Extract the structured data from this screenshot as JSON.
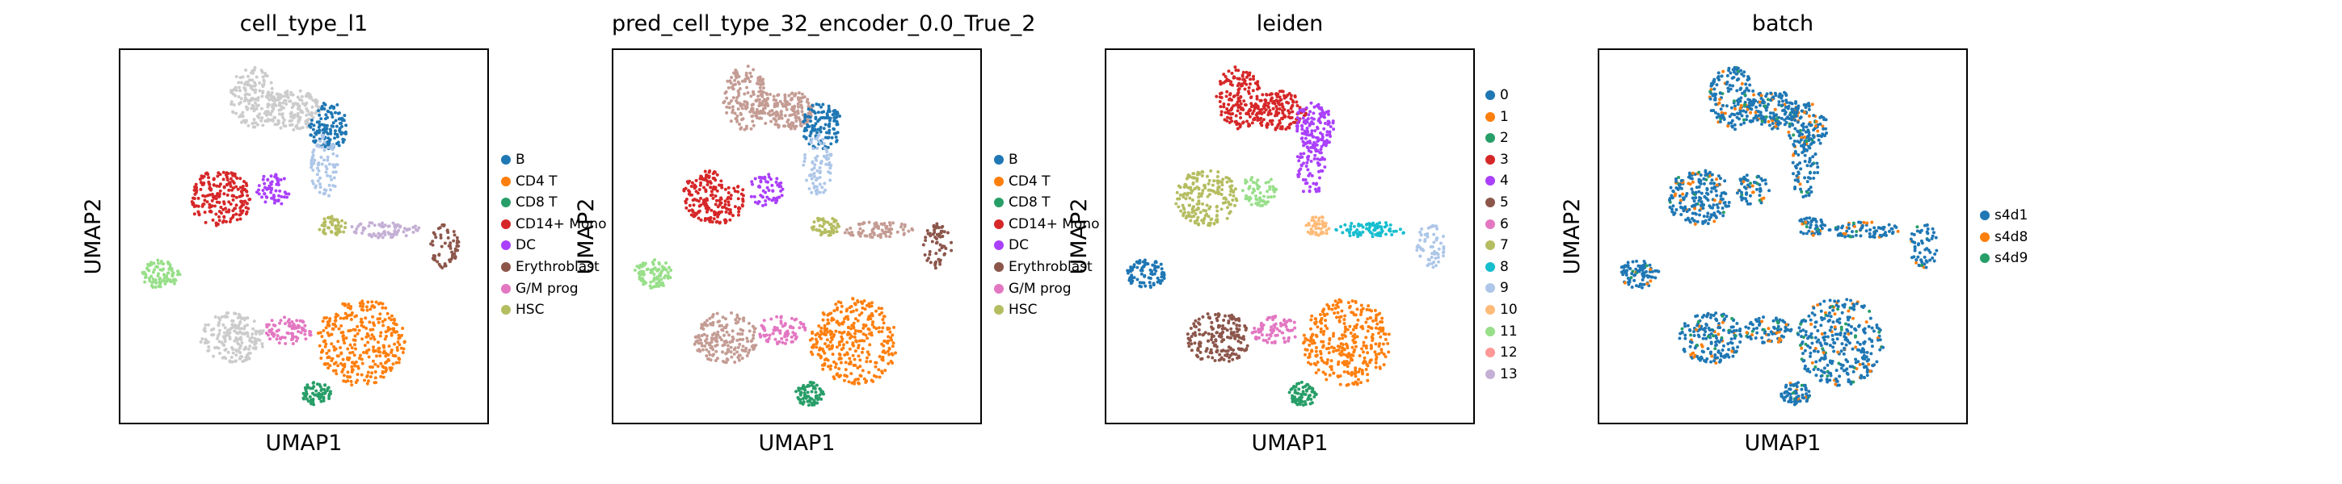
{
  "chart_data": [
    {
      "type": "scatter",
      "title": "cell_type_l1",
      "xlabel": "UMAP1",
      "ylabel": "UMAP2",
      "legend_placement": "right",
      "grid": false,
      "series": [
        {
          "name": "B",
          "color": "#1f77b4"
        },
        {
          "name": "CD4 T",
          "color": "#ff7f0e"
        },
        {
          "name": "CD8 T",
          "color": "#279e68"
        },
        {
          "name": "CD14+ Mono",
          "color": "#d62728"
        },
        {
          "name": "DC",
          "color": "#aa40fc"
        },
        {
          "name": "Erythroblast",
          "color": "#8c564b"
        },
        {
          "name": "G/M prog",
          "color": "#e377c2"
        },
        {
          "name": "HSC",
          "color": "#b5bd61"
        }
      ]
    },
    {
      "type": "scatter",
      "title": "pred_cell_type_32_encoder_0.0_True_2",
      "xlabel": "UMAP1",
      "ylabel": "UMAP2",
      "legend_placement": "right",
      "grid": false,
      "series": [
        {
          "name": "B",
          "color": "#1f77b4"
        },
        {
          "name": "CD4 T",
          "color": "#ff7f0e"
        },
        {
          "name": "CD8 T",
          "color": "#279e68"
        },
        {
          "name": "CD14+ Mono",
          "color": "#d62728"
        },
        {
          "name": "DC",
          "color": "#aa40fc"
        },
        {
          "name": "Erythroblast",
          "color": "#8c564b"
        },
        {
          "name": "G/M prog",
          "color": "#e377c2"
        },
        {
          "name": "HSC",
          "color": "#b5bd61"
        }
      ]
    },
    {
      "type": "scatter",
      "title": "leiden",
      "xlabel": "UMAP1",
      "ylabel": "UMAP2",
      "legend_placement": "right",
      "grid": false,
      "series": [
        {
          "name": "0",
          "color": "#1f77b4"
        },
        {
          "name": "1",
          "color": "#ff7f0e"
        },
        {
          "name": "2",
          "color": "#279e68"
        },
        {
          "name": "3",
          "color": "#d62728"
        },
        {
          "name": "4",
          "color": "#aa40fc"
        },
        {
          "name": "5",
          "color": "#8c564b"
        },
        {
          "name": "6",
          "color": "#e377c2"
        },
        {
          "name": "7",
          "color": "#b5bd61"
        },
        {
          "name": "8",
          "color": "#17becf"
        },
        {
          "name": "9",
          "color": "#aec7e8"
        },
        {
          "name": "10",
          "color": "#ffbb78"
        },
        {
          "name": "11",
          "color": "#98df8a"
        },
        {
          "name": "12",
          "color": "#ff9896"
        },
        {
          "name": "13",
          "color": "#c5b0d5"
        }
      ]
    },
    {
      "type": "scatter",
      "title": "batch",
      "xlabel": "UMAP1",
      "ylabel": "UMAP2",
      "legend_placement": "right",
      "grid": false,
      "series": [
        {
          "name": "s4d1",
          "color": "#1f77b4"
        },
        {
          "name": "s4d8",
          "color": "#ff7f0e"
        },
        {
          "name": "s4d9",
          "color": "#279e68"
        }
      ]
    }
  ]
}
